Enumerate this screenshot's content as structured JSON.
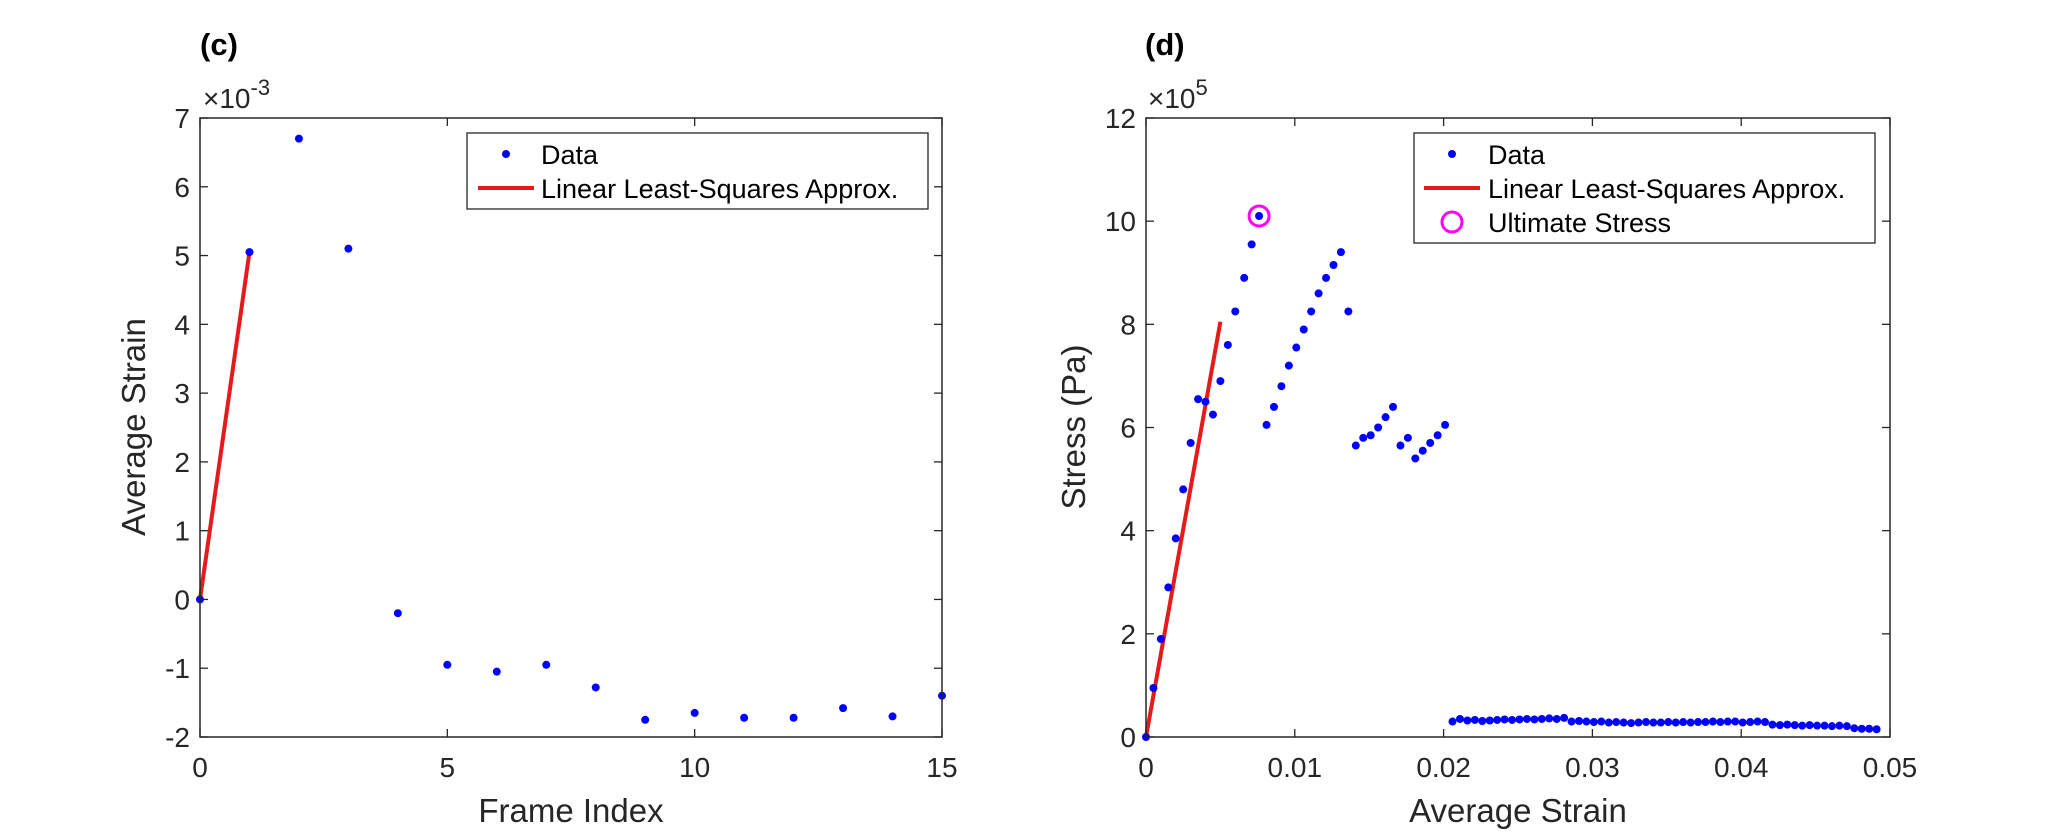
{
  "chart_data": [
    {
      "type": "scatter",
      "panel_label": "(c)",
      "xlabel": "Frame Index",
      "ylabel": "Average Strain",
      "xlim": [
        0,
        15
      ],
      "ylim": [
        -0.002,
        0.007
      ],
      "xticks": [
        0,
        5,
        10,
        15
      ],
      "yticks": [
        -2,
        -1,
        0,
        1,
        2,
        3,
        4,
        5,
        6,
        7
      ],
      "y_exponent_label": "×10",
      "y_exponent_power": "-3",
      "grid": false,
      "legend_position": "top-right",
      "series": [
        {
          "name": "Data",
          "kind": "points",
          "color": "#0000FF",
          "x": [
            0,
            1,
            2,
            3,
            4,
            5,
            6,
            7,
            8,
            9,
            10,
            11,
            12,
            13,
            14,
            15
          ],
          "y": [
            0,
            0.00505,
            0.0067,
            0.0051,
            -0.0002,
            -0.00095,
            -0.00105,
            -0.00095,
            -0.00128,
            -0.00175,
            -0.00165,
            -0.00172,
            -0.00172,
            -0.00158,
            -0.0017,
            -0.0014
          ]
        },
        {
          "name": "Linear Least-Squares Approx.",
          "kind": "line",
          "color": "#E51A1A",
          "x": [
            0,
            1
          ],
          "y": [
            0,
            0.00505
          ]
        }
      ]
    },
    {
      "type": "scatter",
      "panel_label": "(d)",
      "xlabel": "Average Strain",
      "ylabel": "Stress (Pa)",
      "xlim": [
        0,
        0.05
      ],
      "ylim": [
        0,
        1200000
      ],
      "xticks": [
        "0",
        "0.01",
        "0.02",
        "0.03",
        "0.04",
        "0.05"
      ],
      "yticks": [
        0,
        2,
        4,
        6,
        8,
        10,
        12
      ],
      "y_exponent_label": "×10",
      "y_exponent_power": "5",
      "grid": false,
      "legend_position": "top-right",
      "series": [
        {
          "name": "Data",
          "kind": "points",
          "color": "#0000FF",
          "x": [
            0,
            0.0005,
            0.001,
            0.0015,
            0.002,
            0.0025,
            0.003,
            0.0035,
            0.004,
            0.0045,
            0.005,
            0.0055,
            0.006,
            0.0066,
            0.0071,
            0.0076,
            0.0081,
            0.0086,
            0.0091,
            0.0096,
            0.0101,
            0.0106,
            0.0111,
            0.0116,
            0.0121,
            0.0126,
            0.0131,
            0.0136,
            0.0141,
            0.0146,
            0.0151,
            0.0156,
            0.0161,
            0.0166,
            0.0171,
            0.0176,
            0.0181,
            0.0186,
            0.0191,
            0.0196,
            0.0201,
            0.0206,
            0.0211,
            0.0216,
            0.0221,
            0.0226,
            0.0231,
            0.0236,
            0.0241,
            0.0246,
            0.0251,
            0.0256,
            0.0261,
            0.0266,
            0.0271,
            0.0276,
            0.0281,
            0.0286,
            0.0291,
            0.0296,
            0.0301,
            0.0306,
            0.0311,
            0.0316,
            0.0321,
            0.0326,
            0.0331,
            0.0336,
            0.0341,
            0.0346,
            0.0351,
            0.0356,
            0.0361,
            0.0366,
            0.0371,
            0.0376,
            0.0381,
            0.0386,
            0.0391,
            0.0396,
            0.0401,
            0.0406,
            0.0411,
            0.0416,
            0.0421,
            0.0426,
            0.0431,
            0.0436,
            0.0441,
            0.0446,
            0.0451,
            0.0456,
            0.0461,
            0.0466,
            0.0471,
            0.0476,
            0.0481,
            0.0486,
            0.0491
          ],
          "y": [
            0,
            95000,
            190000,
            290000,
            385000,
            480000,
            570000,
            655000,
            650000,
            625000,
            690000,
            760000,
            825000,
            890000,
            955000,
            1010000,
            605000,
            640000,
            680000,
            720000,
            755000,
            790000,
            825000,
            860000,
            890000,
            915000,
            940000,
            825000,
            565000,
            580000,
            585000,
            600000,
            620000,
            640000,
            565000,
            580000,
            540000,
            555000,
            570000,
            585000,
            605000,
            30000,
            35000,
            32000,
            33000,
            31000,
            32000,
            33000,
            34000,
            33000,
            34000,
            35000,
            34000,
            35000,
            36000,
            35000,
            37000,
            30000,
            31000,
            30000,
            29000,
            30000,
            28000,
            29000,
            28000,
            27000,
            28000,
            29000,
            28000,
            28000,
            29000,
            28000,
            29000,
            28000,
            29000,
            29000,
            30000,
            29000,
            30000,
            30000,
            28000,
            29000,
            30000,
            29000,
            24000,
            23000,
            24000,
            23000,
            22000,
            23000,
            22000,
            22000,
            21000,
            22000,
            21000,
            17000,
            16000,
            16000,
            15000
          ]
        },
        {
          "name": "Linear Least-Squares Approx.",
          "kind": "line",
          "color": "#E51A1A",
          "x": [
            0,
            0.005
          ],
          "y": [
            0,
            805000
          ]
        },
        {
          "name": "Ultimate Stress",
          "kind": "marker",
          "color": "#FF00FF",
          "x": [
            0.0076
          ],
          "y": [
            1010000
          ]
        }
      ]
    }
  ]
}
